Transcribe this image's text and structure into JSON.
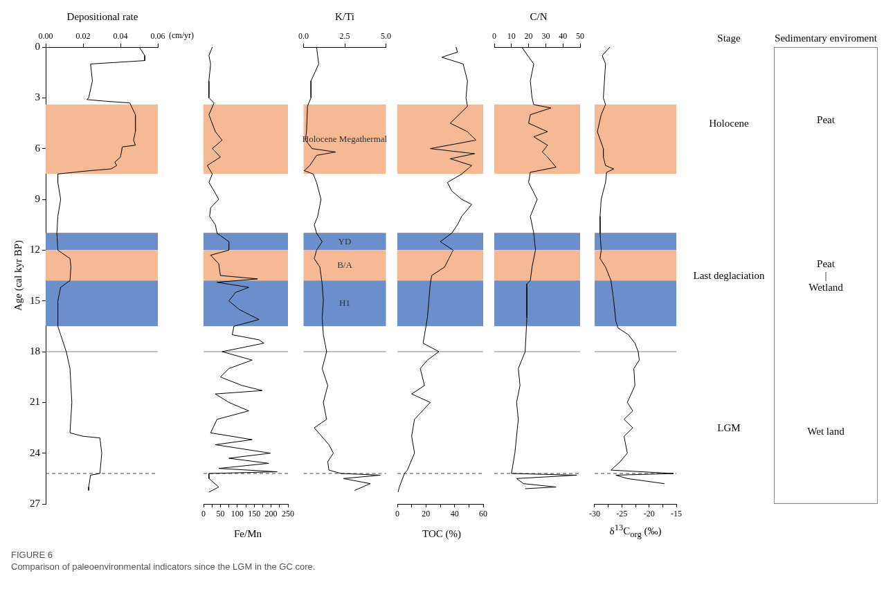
{
  "chart_data": [
    {
      "type": "line",
      "xlabel": "Depositional rate",
      "ylabel": "Age (cal kyr BP)",
      "xlim": [
        0,
        0.06
      ],
      "xticks": [
        {
          "value": 0,
          "label": "0.00"
        },
        {
          "value": 0.02,
          "label": "0.02"
        },
        {
          "value": 0.04,
          "label": "0.04"
        },
        {
          "value": 0.06,
          "label": "0.06"
        }
      ],
      "ylim": [
        27,
        0
      ],
      "yticks": [
        0,
        3,
        6,
        9,
        12,
        15,
        18,
        21,
        24,
        27
      ],
      "series": [
        {
          "color": "#000000",
          "x": [
            0.05,
            0.053,
            0.053,
            0.024,
            0.025,
            0.023,
            0.022,
            0.032,
            0.045,
            0.048,
            0.048,
            0.047,
            0.048,
            0.041,
            0.04,
            0.037,
            0.038,
            0.035,
            0.024,
            0.0065,
            0.0065,
            0.008,
            0.0065,
            0.006,
            0.0065,
            0.013,
            0.0135,
            0.013,
            0.008,
            0.0065,
            0.0065,
            0.008,
            0.011,
            0.013,
            0.014,
            0.013,
            0.02,
            0.029,
            0.03,
            0.029,
            0.024,
            0.023,
            0.023
          ],
          "values": [
            0,
            0.5,
            0.8,
            1.0,
            2,
            3,
            3.1,
            3.2,
            3.3,
            4,
            5,
            5.5,
            5.8,
            5.9,
            6.5,
            6.8,
            7.0,
            7.2,
            7.3,
            7.5,
            8,
            9,
            10,
            11,
            12,
            12.5,
            13,
            13.8,
            14.2,
            15,
            16.5,
            17,
            18,
            19,
            21,
            22.8,
            23.0,
            23.1,
            24,
            25.2,
            25.3,
            26,
            26.2
          ]
        }
      ],
      "bands": [
        {
          "axis": "y",
          "from": 3.4,
          "to": 7.5,
          "color": "#f5b995"
        },
        {
          "axis": "y",
          "from": 11,
          "to": 12,
          "color": "#6a8fcb"
        },
        {
          "axis": "y",
          "from": 12,
          "to": 13.8,
          "color": "#f5b995"
        },
        {
          "axis": "y",
          "from": 13.8,
          "to": 16.5,
          "color": "#6a8fcb"
        }
      ],
      "ref_lines": [
        {
          "axis": "y",
          "value": 11,
          "color": "#808080"
        },
        {
          "axis": "y",
          "value": 18,
          "color": "#808080"
        },
        {
          "axis": "y",
          "value": 25.2,
          "color": "#404040",
          "line_style": "dashed"
        }
      ],
      "annotations": [
        "(cm/yr)"
      ]
    },
    {
      "type": "line",
      "xlabel": "Fe/Mn",
      "tick_labels": "x",
      "xlim": [
        0,
        250
      ],
      "xticks": [
        0,
        {
          "value": 25,
          "label": null
        },
        50,
        {
          "value": 75,
          "label": null
        },
        100,
        {
          "value": 125,
          "label": null
        },
        150,
        {
          "value": 175,
          "label": null
        },
        200,
        {
          "value": 225,
          "label": null
        },
        250
      ],
      "ylim": [
        27,
        0
      ],
      "series": [
        {
          "color": "#000000",
          "x": [
            26,
            16,
            21,
            16,
            16,
            31,
            16,
            35,
            55,
            26,
            50,
            11,
            26,
            16,
            31,
            45,
            21,
            18,
            35,
            40,
            75,
            75,
            21,
            45,
            50,
            160,
            40,
            134,
            95,
            75,
            105,
            164,
            90,
            85,
            164,
            179,
            105,
            55,
            144,
            75,
            50,
            114,
            174,
            35,
            75,
            134,
            40,
            21,
            144,
            35,
            198,
            75,
            193,
            45,
            218,
            16,
            16,
            45,
            16
          ],
          "values": [
            0,
            0.5,
            1,
            2,
            3,
            3.3,
            4,
            5,
            5.5,
            6,
            6.5,
            7,
            7.5,
            8,
            8.5,
            9,
            9.5,
            10,
            10.5,
            11,
            11.5,
            12,
            12.3,
            12.8,
            13.5,
            13.7,
            13.9,
            14.2,
            14.5,
            15,
            15.5,
            16.1,
            16.5,
            17,
            17.3,
            17.5,
            17.8,
            18,
            18.5,
            19,
            19.5,
            20,
            20.3,
            20.5,
            21,
            21.5,
            22,
            22.8,
            23.2,
            23.5,
            24,
            24.3,
            24.6,
            24.9,
            25.1,
            25.2,
            25.5,
            26,
            26.3
          ]
        }
      ],
      "bands": [
        {
          "axis": "y",
          "from": 3.4,
          "to": 7.5,
          "color": "#f5b995"
        },
        {
          "axis": "y",
          "from": 11,
          "to": 12,
          "color": "#6a8fcb"
        },
        {
          "axis": "y",
          "from": 12,
          "to": 13.8,
          "color": "#f5b995"
        },
        {
          "axis": "y",
          "from": 13.8,
          "to": 16.5,
          "color": "#6a8fcb"
        }
      ],
      "ref_lines": [
        {
          "axis": "y",
          "value": 11,
          "color": "#808080"
        },
        {
          "axis": "y",
          "value": 18,
          "color": "#808080"
        },
        {
          "axis": "y",
          "value": 25.2,
          "color": "#404040",
          "line_style": "dashed"
        }
      ]
    },
    {
      "type": "line",
      "xlabel": "K/Ti",
      "tick_labels": "x",
      "xlim": [
        0,
        5
      ],
      "xticks": [
        {
          "value": 0,
          "label": "0.0"
        },
        {
          "value": 2.5,
          "label": "2.5"
        },
        {
          "value": 5,
          "label": "5.0"
        }
      ],
      "ylim": [
        27,
        0
      ],
      "series": [
        {
          "color": "#000000",
          "x": [
            0.79,
            0.92,
            0.45,
            0.45,
            0.24,
            0.18,
            0.11,
            0.52,
            1.94,
            0.79,
            0.38,
            0.04,
            0.58,
            0.79,
            1.06,
            0.86,
            0.65,
            0.79,
            1.13,
            0.79,
            0.65,
            0.99,
            1.13,
            1.2,
            1.13,
            1.2,
            1.4,
            1.13,
            1.47,
            1.2,
            1.4,
            0.65,
            1.54,
            1.81,
            1.47,
            1.54,
            2.28,
            4.66,
            2.42,
            4.05,
            3.1
          ],
          "values": [
            0,
            1,
            2,
            3,
            3.5,
            5,
            5.5,
            6.0,
            6.2,
            6.4,
            7,
            7.3,
            7.5,
            8,
            9,
            10,
            10.5,
            11,
            11.5,
            12,
            12.5,
            13,
            14,
            15,
            16,
            17,
            18,
            19,
            20,
            21,
            22,
            22.5,
            23.5,
            24.0,
            24.5,
            25,
            25.2,
            25.3,
            25.5,
            25.8,
            26.2
          ]
        }
      ],
      "bands": [
        {
          "axis": "y",
          "from": 3.4,
          "to": 7.5,
          "label": "Holocene Megathermal",
          "color": "#f5b995"
        },
        {
          "axis": "y",
          "from": 11,
          "to": 12,
          "label": "YD",
          "color": "#6a8fcb"
        },
        {
          "axis": "y",
          "from": 12,
          "to": 13.8,
          "label": "B/A",
          "color": "#f5b995"
        },
        {
          "axis": "y",
          "from": 13.8,
          "to": 16.5,
          "label": "H1",
          "color": "#6a8fcb"
        }
      ],
      "ref_lines": [
        {
          "axis": "y",
          "value": 11,
          "color": "#808080"
        },
        {
          "axis": "y",
          "value": 18,
          "color": "#808080"
        },
        {
          "axis": "y",
          "value": 25.2,
          "color": "#404040",
          "line_style": "dashed"
        }
      ]
    },
    {
      "type": "line",
      "xlabel": "TOC (%)",
      "tick_labels": "x",
      "xlim": [
        0,
        60
      ],
      "xticks": [
        0,
        {
          "value": 10,
          "label": null
        },
        20,
        {
          "value": 30,
          "label": null
        },
        40,
        {
          "value": 50,
          "label": null
        },
        60
      ],
      "ylim": [
        27,
        0
      ],
      "series": [
        {
          "color": "#000000",
          "x": [
            41,
            42,
            31,
            46,
            49,
            48,
            49,
            37,
            49,
            55,
            23,
            54,
            37,
            52,
            45,
            35,
            38,
            45,
            52,
            45,
            42,
            38,
            30,
            39,
            36,
            33,
            24,
            23,
            22,
            21,
            19,
            18,
            29,
            21,
            16,
            19,
            10,
            23,
            12,
            10,
            12,
            7,
            5,
            1.4,
            0.5
          ],
          "values": [
            0,
            0.3,
            0.6,
            1,
            2,
            3,
            3.5,
            4.5,
            5,
            5.5,
            6.0,
            6.3,
            6.6,
            7,
            7.5,
            8,
            8.5,
            9,
            9.3,
            10,
            10.5,
            11,
            11.5,
            12,
            12.5,
            13,
            13.5,
            14,
            15,
            16,
            17,
            17.5,
            18,
            18.5,
            19,
            20,
            20.5,
            21,
            22,
            23,
            24,
            25,
            25.2,
            26,
            26.3
          ]
        }
      ],
      "bands": [
        {
          "axis": "y",
          "from": 3.4,
          "to": 7.5,
          "color": "#f5b995"
        },
        {
          "axis": "y",
          "from": 11,
          "to": 12,
          "color": "#6a8fcb"
        },
        {
          "axis": "y",
          "from": 12,
          "to": 13.8,
          "color": "#f5b995"
        },
        {
          "axis": "y",
          "from": 13.8,
          "to": 16.5,
          "color": "#6a8fcb"
        }
      ],
      "ref_lines": [
        {
          "axis": "y",
          "value": 11,
          "color": "#808080"
        },
        {
          "axis": "y",
          "value": 18,
          "color": "#808080"
        },
        {
          "axis": "y",
          "value": 25.2,
          "color": "#404040",
          "line_style": "dashed"
        }
      ]
    },
    {
      "type": "line",
      "xlabel": "C/N",
      "tick_labels": "x",
      "xlim": [
        0,
        50
      ],
      "xticks": [
        0,
        10,
        20,
        30,
        40,
        50
      ],
      "ylim": [
        27,
        0
      ],
      "series": [
        {
          "color": "#000000",
          "x": [
            16,
            23,
            21,
            22,
            23,
            33,
            21,
            20,
            31,
            23,
            31,
            28,
            31,
            36,
            21,
            20,
            25,
            21,
            23,
            24,
            22,
            21,
            19,
            19,
            18,
            14,
            15,
            13,
            14,
            13,
            12,
            10,
            48,
            13,
            17,
            36,
            18
          ],
          "values": [
            0,
            1,
            2,
            3,
            3.4,
            3.6,
            4,
            4.5,
            5,
            5.3,
            5.8,
            6.2,
            6.5,
            7.1,
            7.4,
            8,
            9,
            10,
            11,
            12,
            13,
            13.8,
            14,
            16,
            18,
            19,
            20,
            21,
            22,
            23,
            24,
            25.2,
            25.3,
            25.5,
            25.8,
            26.0,
            26.1
          ]
        }
      ],
      "bands": [
        {
          "axis": "y",
          "from": 3.4,
          "to": 7.5,
          "color": "#f5b995"
        },
        {
          "axis": "y",
          "from": 11,
          "to": 12,
          "color": "#6a8fcb"
        },
        {
          "axis": "y",
          "from": 12,
          "to": 13.8,
          "color": "#f5b995"
        },
        {
          "axis": "y",
          "from": 13.8,
          "to": 16.5,
          "color": "#6a8fcb"
        }
      ],
      "ref_lines": [
        {
          "axis": "y",
          "value": 11,
          "color": "#808080"
        },
        {
          "axis": "y",
          "value": 18,
          "color": "#808080"
        },
        {
          "axis": "y",
          "value": 25.2,
          "color": "#404040",
          "line_style": "dashed"
        }
      ]
    },
    {
      "type": "line",
      "xlabel": "δ$^{13}$C$_{org}$ (‰)",
      "tick_labels": "x",
      "xlim": [
        -30,
        -15
      ],
      "xticks": [
        -30,
        {
          "value": -27.5,
          "label": null
        },
        -25,
        {
          "value": -22.5,
          "label": null
        },
        -20,
        {
          "value": -17.5,
          "label": null
        },
        -15
      ],
      "ylim": [
        27,
        0
      ],
      "series": [
        {
          "color": "#000000",
          "x": [
            -27.2,
            -28.6,
            -28,
            -28.2,
            -28.4,
            -28,
            -28.8,
            -29.5,
            -28.4,
            -28.4,
            -28,
            -26.5,
            -27.8,
            -28,
            -28.8,
            -29,
            -29,
            -28.8,
            -29,
            -28,
            -27,
            -26.5,
            -26.1,
            -25.7,
            -23.8,
            -22.6,
            -22,
            -21.8,
            -22.8,
            -22.6,
            -24,
            -23,
            -24.6,
            -23,
            -24.6,
            -24,
            -25.3,
            -27,
            -15.5,
            -26.1,
            -24,
            -17.2
          ],
          "values": [
            0,
            0.5,
            1,
            2,
            3,
            3.4,
            4,
            5,
            6,
            6.5,
            7.0,
            7.2,
            7.4,
            8,
            9,
            10,
            11,
            12,
            12.5,
            13,
            13.8,
            15,
            16.2,
            16.6,
            17,
            17.5,
            18,
            18.5,
            19,
            20,
            21,
            21.5,
            22,
            22.5,
            23,
            24,
            24.5,
            25.0,
            25.2,
            25.3,
            25.5,
            25.8
          ]
        }
      ],
      "bands": [
        {
          "axis": "y",
          "from": 3.4,
          "to": 7.5,
          "color": "#f5b995"
        },
        {
          "axis": "y",
          "from": 11,
          "to": 12,
          "color": "#6a8fcb"
        },
        {
          "axis": "y",
          "from": 12,
          "to": 13.8,
          "color": "#f5b995"
        },
        {
          "axis": "y",
          "from": 13.8,
          "to": 16.5,
          "color": "#6a8fcb"
        }
      ],
      "ref_lines": [
        {
          "axis": "y",
          "value": 11,
          "color": "#808080"
        },
        {
          "axis": "y",
          "value": 18,
          "color": "#808080"
        },
        {
          "axis": "y",
          "value": 25.2,
          "color": "#404040",
          "line_style": "dashed"
        }
      ]
    },
    {
      "type": "other",
      "title": "Stage",
      "categories": [
        "Holocene",
        "Last deglaciation",
        "LGM"
      ]
    },
    {
      "type": "other",
      "title": "Sedimentary enviroment",
      "categories": [
        "Peat",
        "Peat\n|\nWetland",
        "Wet land"
      ],
      "annotations": [
        "FIGURE 6",
        "Comparison of paleoenvironmental indicators since the LGM in the GC core."
      ]
    }
  ]
}
